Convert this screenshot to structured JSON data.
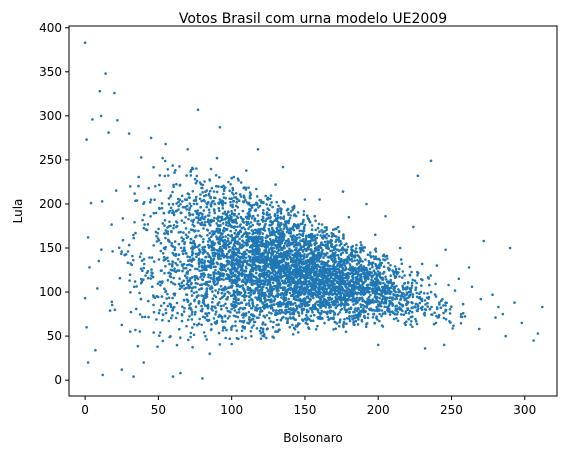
{
  "chart_data": {
    "type": "scatter",
    "title": "Votos Brasil com urna modelo UE2009",
    "xlabel": "Bolsonaro",
    "ylabel": "Lula",
    "xlim": [
      -11,
      322
    ],
    "ylim": [
      -18,
      402
    ],
    "xticks": [
      0,
      50,
      100,
      150,
      200,
      250,
      300
    ],
    "yticks": [
      0,
      50,
      100,
      150,
      200,
      250,
      300,
      350,
      400
    ],
    "grid": false,
    "legend": "none",
    "color": "#1f77b4",
    "series": [
      {
        "description_points": "notable sparse points",
        "points": [
          [
            0,
            383
          ],
          [
            14,
            348
          ],
          [
            10,
            328
          ],
          [
            20,
            326
          ],
          [
            77,
            307
          ],
          [
            92,
            287
          ],
          [
            5,
            296
          ],
          [
            1,
            273
          ],
          [
            312,
            83
          ],
          [
            306,
            45
          ],
          [
            309,
            53
          ],
          [
            290,
            150
          ],
          [
            272,
            158
          ],
          [
            282,
            83
          ],
          [
            258,
            76
          ],
          [
            264,
            106
          ],
          [
            278,
            97
          ],
          [
            293,
            88
          ],
          [
            298,
            65
          ],
          [
            287,
            50
          ],
          [
            280,
            71
          ],
          [
            269,
            58
          ],
          [
            245,
            40
          ],
          [
            232,
            36
          ],
          [
            80,
            2
          ],
          [
            65,
            8
          ],
          [
            60,
            4
          ],
          [
            2,
            20
          ],
          [
            12,
            6
          ],
          [
            33,
            4
          ],
          [
            1,
            60
          ],
          [
            0,
            93
          ],
          [
            3,
            128
          ],
          [
            2,
            162
          ],
          [
            4,
            201
          ],
          [
            236,
            249
          ],
          [
            227,
            232
          ],
          [
            176,
            214
          ],
          [
            135,
            242
          ],
          [
            118,
            262
          ],
          [
            205,
            186
          ],
          [
            192,
            200
          ],
          [
            224,
            174
          ],
          [
            246,
            148
          ],
          [
            255,
            115
          ],
          [
            262,
            128
          ],
          [
            240,
            130
          ],
          [
            200,
            40
          ],
          [
            178,
            55
          ],
          [
            142,
            52
          ],
          [
            120,
            47
          ],
          [
            100,
            41
          ],
          [
            85,
            30
          ],
          [
            40,
            20
          ],
          [
            25,
            12
          ],
          [
            7,
            34
          ],
          [
            11,
            300
          ],
          [
            16,
            281
          ],
          [
            22,
            295
          ],
          [
            30,
            280
          ],
          [
            45,
            275
          ],
          [
            55,
            268
          ],
          [
            70,
            262
          ],
          [
            90,
            252
          ],
          [
            110,
            238
          ],
          [
            130,
            222
          ],
          [
            150,
            205
          ],
          [
            160,
            205
          ],
          [
            180,
            185
          ],
          [
            198,
            165
          ],
          [
            215,
            150
          ],
          [
            230,
            132
          ],
          [
            248,
            108
          ],
          [
            270,
            92
          ],
          [
            285,
            75
          ]
        ]
      }
    ],
    "density_model": {
      "x_range": [
        0,
        260
      ],
      "upper_envelope": [
        [
          0,
          270
        ],
        [
          40,
          272
        ],
        [
          80,
          250
        ],
        [
          120,
          222
        ],
        [
          160,
          185
        ],
        [
          200,
          152
        ],
        [
          240,
          118
        ],
        [
          260,
          98
        ]
      ],
      "lower_envelope": [
        [
          0,
          15
        ],
        [
          40,
          18
        ],
        [
          80,
          32
        ],
        [
          120,
          45
        ],
        [
          160,
          55
        ],
        [
          200,
          58
        ],
        [
          240,
          55
        ],
        [
          260,
          50
        ]
      ]
    }
  }
}
